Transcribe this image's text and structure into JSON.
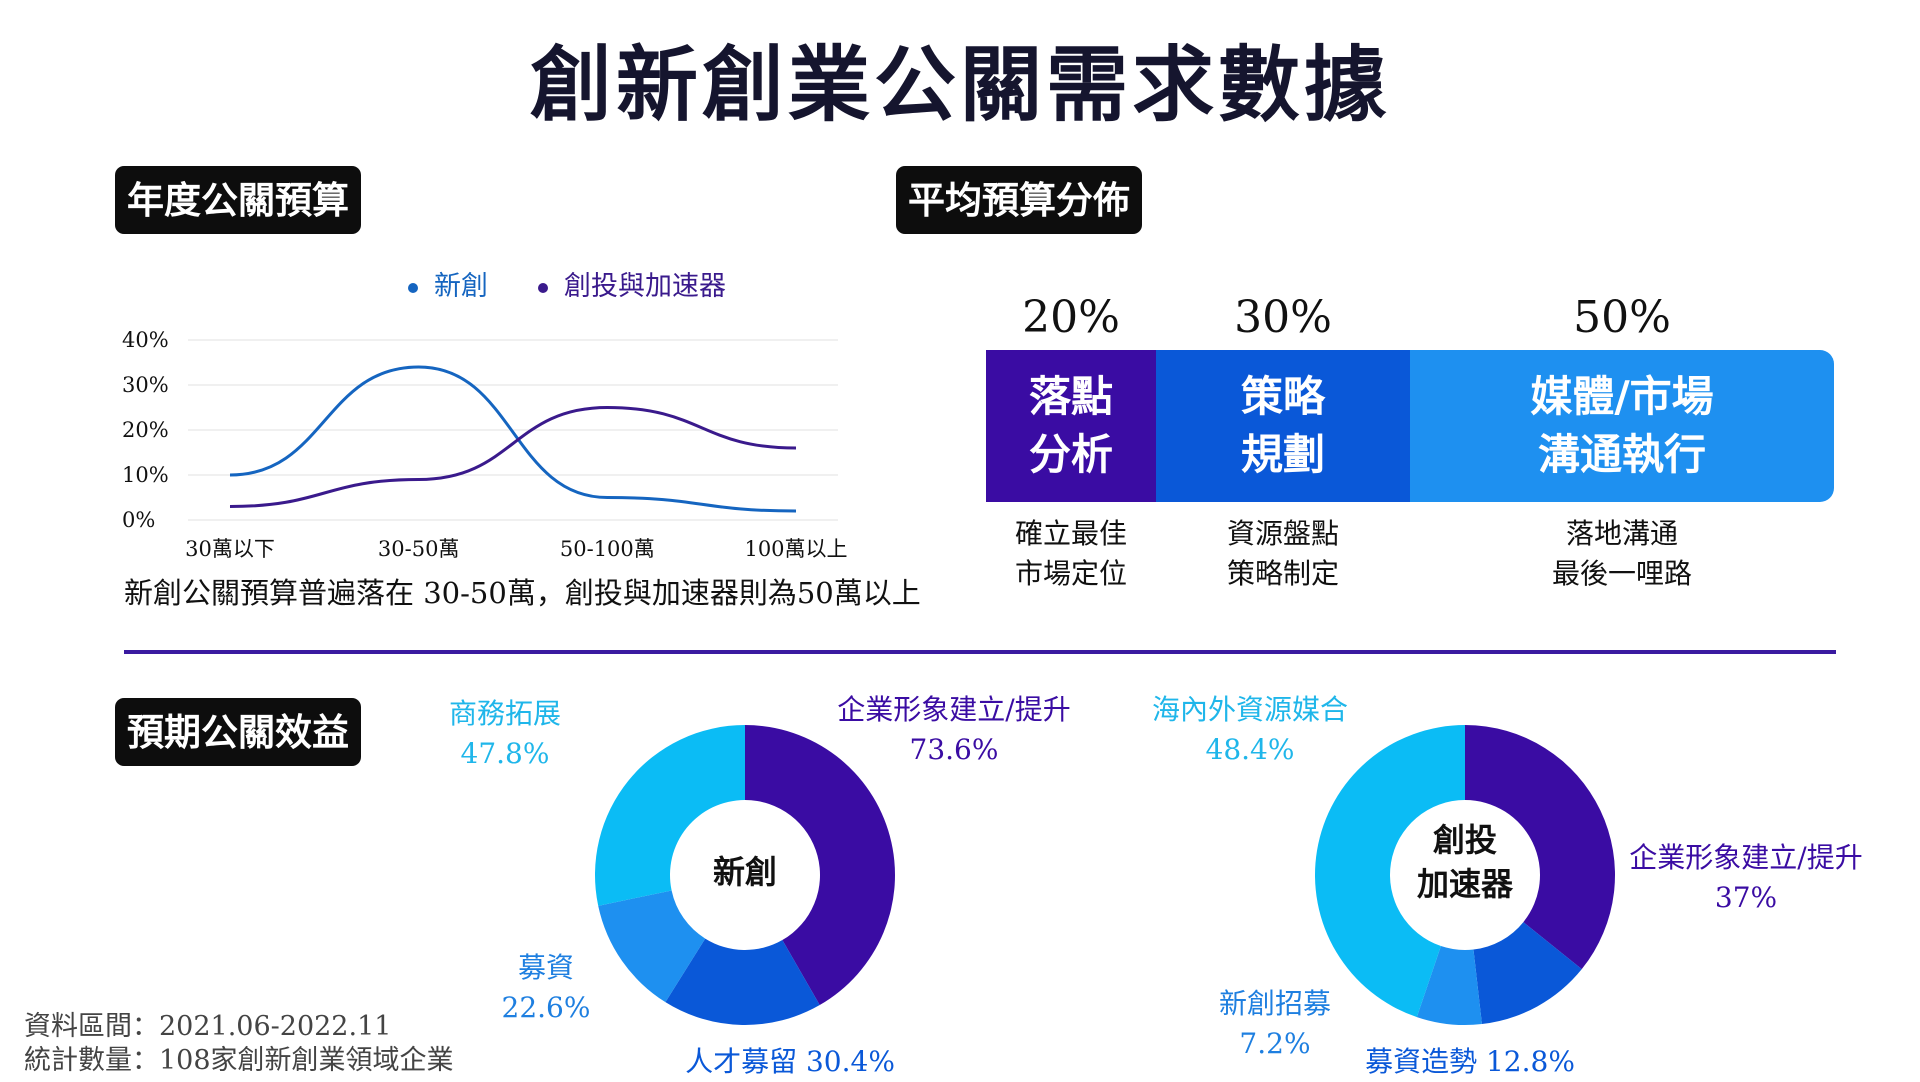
{
  "title": "創新創業公關需求數據",
  "sections": {
    "budget": "年度公關預算",
    "distribution": "平均預算分佈",
    "benefits": "預期公關效益"
  },
  "colors": {
    "startup": "#1565c0",
    "vc": "#3a1a8c",
    "dark": "#3a0ca3",
    "mid": "#0a58d8",
    "light": "#1e90f0",
    "cyan": "#0bbcf5"
  },
  "chart_data": [
    {
      "type": "line",
      "categories": [
        "30萬以下",
        "30-50萬",
        "50-100萬",
        "100萬以上"
      ],
      "series": [
        {
          "name": "新創",
          "values": [
            10,
            34,
            5,
            2
          ]
        },
        {
          "name": "創投與加速器",
          "values": [
            3,
            9,
            25,
            16
          ]
        }
      ],
      "yticks": [
        "0%",
        "10%",
        "20%",
        "30%",
        "40%"
      ],
      "ylim": [
        0,
        40
      ],
      "caption": "新創公關預算普遍落在 30-50萬，創投與加速器則為50萬以上"
    },
    {
      "type": "bar",
      "stacked": true,
      "segments": [
        {
          "pct": "20%",
          "value": 20,
          "label1": "落點",
          "label2": "分析",
          "sub1": "確立最佳",
          "sub2": "市場定位"
        },
        {
          "pct": "30%",
          "value": 30,
          "label1": "策略",
          "label2": "規劃",
          "sub1": "資源盤點",
          "sub2": "策略制定"
        },
        {
          "pct": "50%",
          "value": 50,
          "label1": "媒體/市場",
          "label2": "溝通執行",
          "sub1": "落地溝通",
          "sub2": "最後一哩路"
        }
      ]
    },
    {
      "type": "pie",
      "center_line1": "新創",
      "center_line2": "",
      "slices": [
        {
          "label": "企業形象建立/提升",
          "value_text": "73.6%",
          "share": 41.7
        },
        {
          "label": "人才募留",
          "value_text": "30.4%",
          "share": 17.2
        },
        {
          "label": "募資",
          "value_text": "22.6%",
          "share": 12.8
        },
        {
          "label": "商務拓展",
          "value_text": "47.8%",
          "share": 28.3
        }
      ]
    },
    {
      "type": "pie",
      "center_line1": "創投",
      "center_line2": "加速器",
      "slices": [
        {
          "label": "企業形象建立/提升",
          "value_text": "37%",
          "share": 35.8
        },
        {
          "label": "募資造勢",
          "value_text": "12.8%",
          "share": 12.4
        },
        {
          "label": "新創招募",
          "value_text": "7.2%",
          "share": 7.0
        },
        {
          "label": "海內外資源媒合",
          "value_text": "48.4%",
          "share": 44.8
        }
      ]
    }
  ],
  "footer": {
    "line1": "資料區間：2021.06-2022.11",
    "line2": "統計數量：108家創新創業領域企業"
  }
}
